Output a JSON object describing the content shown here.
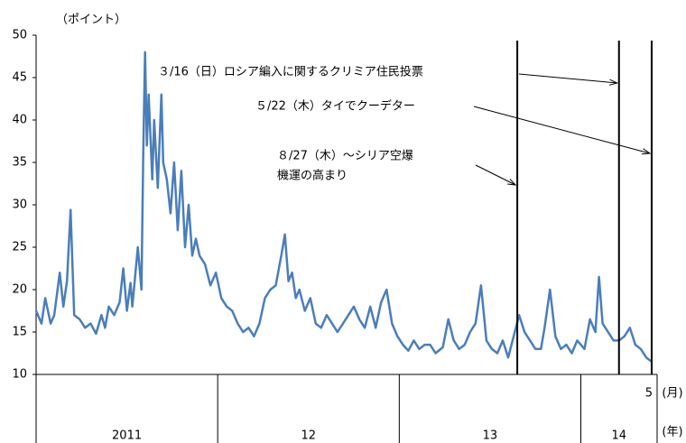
{
  "chart_data": {
    "type": "line",
    "y_unit": "（ポイント）",
    "x_unit_month": "(月)",
    "x_unit_year": "(年)",
    "month_labels": [
      {
        "value": 2014.375,
        "label": "5"
      }
    ],
    "year_groups": [
      {
        "start": 2011,
        "end": 2012,
        "label": "2011"
      },
      {
        "start": 2012,
        "end": 2013,
        "label": "12"
      },
      {
        "start": 2013,
        "end": 2014,
        "label": "13"
      },
      {
        "start": 2014,
        "end": 2014.42,
        "label": "14"
      }
    ],
    "xlim": [
      2011,
      2014.42
    ],
    "ylim": [
      10,
      50
    ],
    "yticks": [
      10,
      15,
      20,
      25,
      30,
      35,
      40,
      45,
      50
    ],
    "events": [
      {
        "x": 2013.65,
        "label": [
          "８/27（木）～シリア空爆",
          "機運の高まり"
        ]
      },
      {
        "x": 2014.21,
        "label": [
          "３/16（日）ロシア編入に関するクリミア住民投票"
        ]
      },
      {
        "x": 2014.39,
        "label": [
          "５/22（木）タイでクーデター"
        ]
      }
    ],
    "series": [
      {
        "color": "#4a7ebb",
        "x": [
          2011.0,
          2011.03,
          2011.05,
          2011.08,
          2011.1,
          2011.13,
          2011.15,
          2011.17,
          2011.19,
          2011.21,
          2011.24,
          2011.27,
          2011.3,
          2011.33,
          2011.36,
          2011.38,
          2011.4,
          2011.43,
          2011.46,
          2011.48,
          2011.5,
          2011.52,
          2011.53,
          2011.56,
          2011.58,
          2011.59,
          2011.6,
          2011.61,
          2011.62,
          2011.64,
          2011.65,
          2011.67,
          2011.69,
          2011.7,
          2011.72,
          2011.74,
          2011.76,
          2011.78,
          2011.8,
          2011.82,
          2011.84,
          2011.86,
          2011.88,
          2011.9,
          2011.93,
          2011.96,
          2011.99,
          2012.02,
          2012.05,
          2012.08,
          2012.11,
          2012.14,
          2012.17,
          2012.2,
          2012.23,
          2012.26,
          2012.29,
          2012.32,
          2012.35,
          2012.37,
          2012.39,
          2012.41,
          2012.43,
          2012.45,
          2012.48,
          2012.51,
          2012.54,
          2012.57,
          2012.6,
          2012.63,
          2012.66,
          2012.69,
          2012.72,
          2012.75,
          2012.78,
          2012.81,
          2012.84,
          2012.87,
          2012.9,
          2012.93,
          2012.96,
          2012.99,
          2013.02,
          2013.05,
          2013.08,
          2013.11,
          2013.14,
          2013.17,
          2013.2,
          2013.24,
          2013.27,
          2013.3,
          2013.33,
          2013.36,
          2013.39,
          2013.42,
          2013.45,
          2013.48,
          2013.51,
          2013.54,
          2013.57,
          2013.6,
          2013.63,
          2013.66,
          2013.69,
          2013.72,
          2013.75,
          2013.78,
          2013.8,
          2013.83,
          2013.86,
          2013.89,
          2013.92,
          2013.95,
          2013.98,
          2014.02,
          2014.05,
          2014.08,
          2014.1,
          2014.12,
          2014.15,
          2014.18,
          2014.21,
          2014.24,
          2014.27,
          2014.3,
          2014.33,
          2014.36,
          2014.39
        ],
        "values": [
          17.5,
          16,
          19,
          16,
          17,
          22,
          18,
          21,
          29.4,
          17,
          16.5,
          15.5,
          16,
          14.8,
          17,
          15.5,
          18,
          17,
          18.5,
          22.5,
          17.5,
          20.8,
          18,
          25,
          20,
          36,
          48,
          37,
          43,
          33,
          40,
          32,
          43,
          35,
          33,
          29,
          35,
          27,
          34,
          25,
          30,
          24,
          26,
          24,
          23,
          20.5,
          22,
          19,
          18,
          17.5,
          16,
          15,
          15.5,
          14.5,
          16,
          19,
          20,
          20.5,
          24,
          26.5,
          21,
          22,
          19,
          20,
          17.5,
          19,
          16,
          15.5,
          17,
          16,
          15,
          16,
          17,
          18,
          16.5,
          15.5,
          18,
          15.5,
          18.5,
          20,
          16,
          14.5,
          13.5,
          12.8,
          14,
          13,
          13.5,
          13.5,
          12.5,
          13.2,
          16.5,
          14,
          13,
          13.5,
          15,
          16,
          20.5,
          14,
          13,
          12.5,
          14,
          12,
          14.5,
          17,
          15,
          14,
          13,
          13,
          15.5,
          20,
          14.5,
          13,
          13.5,
          12.5,
          14,
          13,
          16.5,
          15,
          21.5,
          16,
          15,
          14,
          14,
          14.5,
          15.5,
          13.5,
          13,
          12,
          11.5
        ]
      }
    ]
  }
}
